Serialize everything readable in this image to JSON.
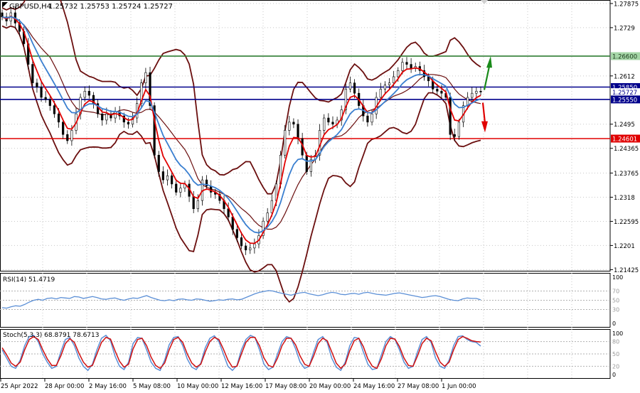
{
  "header": {
    "symbol": "GBPUSD,H4",
    "ohlc": "1.25732 1.25753 1.25724 1.25727"
  },
  "chart_data": {
    "type": "candlestick",
    "price_axis": {
      "min": 1.2138,
      "max": 1.2796,
      "ticks": [
        1.27875,
        1.2729,
        1.2612,
        1.2495,
        1.24365,
        1.23765,
        1.2318,
        1.22595,
        1.2201,
        1.21425
      ]
    },
    "horizontal_levels": [
      {
        "value": 1.266,
        "label": "1.26600",
        "color": "#2e7d32"
      },
      {
        "value": 1.2585,
        "label": "1.25850",
        "color": "#00008b"
      },
      {
        "value": 1.25727,
        "label": "1.25727",
        "color": "#00008b"
      },
      {
        "value": 1.2555,
        "label": "1.25550",
        "color": "#00008b"
      },
      {
        "value": 1.24601,
        "label": "1.24601",
        "color": "#e00000"
      }
    ],
    "forecast_arrows": [
      {
        "direction": "up",
        "color": "#1a8a1a"
      },
      {
        "direction": "down",
        "color": "#e00000"
      }
    ],
    "time_labels": [
      "25 Apr 2022",
      "28 Apr 00:00",
      "2 May 16:00",
      "5 May 08:00",
      "10 May 00:00",
      "12 May 16:00",
      "17 May 08:00",
      "20 May 00:00",
      "24 May 16:00",
      "27 May 08:00",
      "1 Jun 00:00"
    ],
    "close_prices": [
      1.2755,
      1.2745,
      1.2765,
      1.274,
      1.272,
      1.269,
      1.264,
      1.2595,
      1.2585,
      1.256,
      1.2555,
      1.254,
      1.252,
      1.25,
      1.247,
      1.2455,
      1.248,
      1.252,
      1.256,
      1.2575,
      1.2565,
      1.2545,
      1.252,
      1.2505,
      1.252,
      1.251,
      1.2525,
      1.2515,
      1.25,
      1.2495,
      1.251,
      1.2545,
      1.2595,
      1.262,
      1.254,
      1.242,
      1.238,
      1.236,
      1.237,
      1.235,
      1.233,
      1.234,
      1.235,
      1.232,
      1.229,
      1.231,
      1.236,
      1.2345,
      1.233,
      1.2325,
      1.231,
      1.229,
      1.227,
      1.224,
      1.222,
      1.22,
      1.219,
      1.2195,
      1.2205,
      1.2225,
      1.226,
      1.228,
      1.231,
      1.235,
      1.242,
      1.248,
      1.25,
      1.2495,
      1.246,
      1.242,
      1.238,
      1.241,
      1.242,
      1.248,
      1.251,
      1.25,
      1.2495,
      1.2505,
      1.253,
      1.258,
      1.2595,
      1.257,
      1.254,
      1.2515,
      1.25,
      1.252,
      1.256,
      1.258,
      1.259,
      1.2595,
      1.261,
      1.2625,
      1.2645,
      1.264,
      1.263,
      1.2635,
      1.2625,
      1.261,
      1.26,
      1.258,
      1.2575,
      1.257,
      1.256,
      1.247,
      1.2465,
      1.25,
      1.254,
      1.256,
      1.257,
      1.2575,
      1.2573
    ],
    "bollinger": {
      "upper_color": "#6b0f0f",
      "middle_color": "#6b0f0f"
    },
    "moving_averages": [
      {
        "color": "#e00000"
      },
      {
        "color": "#3a7fd0"
      }
    ]
  },
  "rsi": {
    "label": "RSI(14) 51.4719",
    "levels": [
      "100",
      "70",
      "50",
      "30",
      "0"
    ],
    "values": [
      34,
      33,
      36,
      38,
      37,
      41,
      46,
      50,
      52,
      50,
      54,
      55,
      53,
      56,
      55,
      54,
      58,
      57,
      54,
      56,
      58,
      56,
      53,
      52,
      54,
      55,
      52,
      50,
      53,
      55,
      54,
      57,
      60,
      56,
      53,
      50,
      49,
      51,
      49,
      52,
      53,
      51,
      50,
      53,
      52,
      50,
      48,
      49,
      51,
      50,
      52,
      53,
      51,
      52,
      56,
      60,
      64,
      67,
      69,
      71,
      70,
      67,
      65,
      63,
      61,
      64,
      66,
      67,
      64,
      62,
      60,
      62,
      65,
      67,
      66,
      63,
      62,
      64,
      65,
      63,
      66,
      67,
      65,
      63,
      62,
      61,
      63,
      65,
      66,
      64,
      62,
      60,
      58,
      56,
      57,
      59,
      60,
      58,
      55,
      52,
      50,
      49,
      53,
      55,
      54,
      54,
      51
    ]
  },
  "stoch": {
    "label": "Stoch(5,3,3) 68.8791 78.6713",
    "levels": [
      "100",
      "80",
      "50",
      "20",
      "0"
    ],
    "main_values": [
      60,
      40,
      20,
      15,
      35,
      70,
      92,
      95,
      80,
      50,
      30,
      15,
      20,
      55,
      85,
      90,
      70,
      40,
      20,
      10,
      25,
      60,
      88,
      95,
      82,
      45,
      20,
      12,
      30,
      75,
      90,
      88,
      60,
      30,
      15,
      10,
      35,
      72,
      90,
      92,
      70,
      38,
      18,
      12,
      28,
      65,
      88,
      94,
      80,
      50,
      20,
      10,
      22,
      60,
      85,
      95,
      90,
      60,
      25,
      12,
      18,
      50,
      80,
      92,
      88,
      62,
      30,
      15,
      20,
      55,
      85,
      92,
      78,
      40,
      18,
      10,
      30,
      70,
      90,
      88,
      55,
      25,
      12,
      15,
      48,
      80,
      92,
      85,
      60,
      30,
      15,
      20,
      55,
      85,
      92,
      78,
      40,
      20,
      15,
      35,
      70,
      92,
      94,
      85,
      80,
      78,
      69
    ],
    "signal_values": [
      65,
      48,
      28,
      20,
      30,
      60,
      85,
      92,
      85,
      60,
      38,
      22,
      22,
      45,
      75,
      87,
      78,
      52,
      30,
      18,
      22,
      50,
      78,
      90,
      86,
      58,
      32,
      18,
      25,
      62,
      85,
      88,
      70,
      42,
      22,
      15,
      28,
      60,
      85,
      90,
      78,
      50,
      28,
      18,
      25,
      55,
      80,
      90,
      85,
      62,
      35,
      18,
      20,
      50,
      78,
      90,
      90,
      70,
      40,
      22,
      18,
      40,
      70,
      88,
      88,
      72,
      45,
      25,
      20,
      45,
      75,
      88,
      82,
      55,
      28,
      15,
      25,
      58,
      82,
      88,
      68,
      38,
      20,
      15,
      38,
      70,
      88,
      86,
      68,
      40,
      22,
      20,
      45,
      75,
      88,
      82,
      55,
      30,
      20,
      30,
      60,
      85,
      92,
      88,
      82,
      80,
      79
    ]
  }
}
